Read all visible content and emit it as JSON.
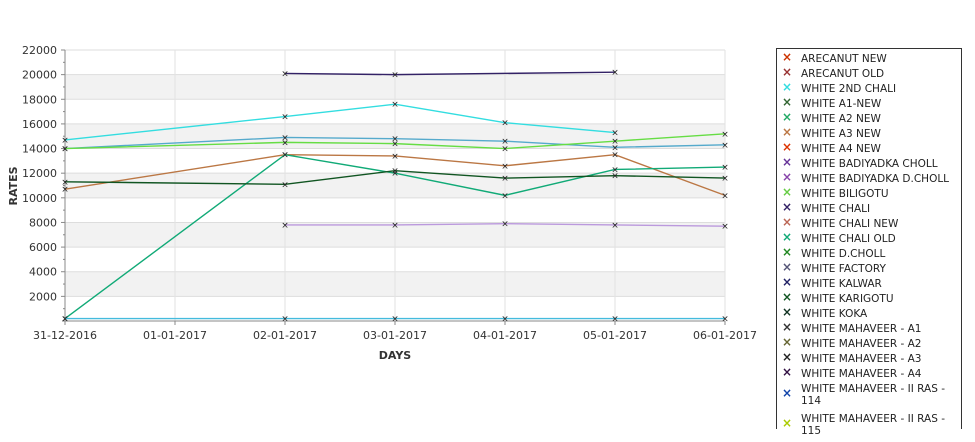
{
  "chart_data": {
    "type": "line",
    "title": "",
    "xlabel": "DAYS",
    "ylabel": "RATES",
    "categories": [
      "31-12-2016",
      "01-01-2017",
      "02-01-2017",
      "03-01-2017",
      "04-01-2017",
      "05-01-2017",
      "06-01-2017"
    ],
    "yticks": [
      2000,
      4000,
      6000,
      8000,
      10000,
      12000,
      14000,
      16000,
      18000,
      20000,
      22000
    ],
    "ylim": [
      0,
      22000
    ],
    "grid": true,
    "legend_position": "right",
    "series": [
      {
        "name": "ARECANUT NEW",
        "color": "#cc3300",
        "values": [
          null,
          null,
          null,
          null,
          null,
          null,
          null
        ]
      },
      {
        "name": "ARECANUT OLD",
        "color": "#993333",
        "values": [
          null,
          null,
          null,
          null,
          null,
          null,
          null
        ]
      },
      {
        "name": "WHITE 2ND CHALI",
        "color": "#33dde0",
        "values": [
          14700,
          null,
          16600,
          17600,
          16100,
          15300,
          null
        ]
      },
      {
        "name": "WHITE A1-NEW",
        "color": "#336633",
        "values": [
          null,
          null,
          null,
          null,
          null,
          null,
          null
        ]
      },
      {
        "name": "WHITE A2 NEW",
        "color": "#22aa66",
        "values": [
          null,
          null,
          null,
          null,
          null,
          null,
          null
        ]
      },
      {
        "name": "WHITE A3 NEW",
        "color": "#bb7744",
        "values": [
          10700,
          null,
          13500,
          13400,
          12600,
          13500,
          10200
        ]
      },
      {
        "name": "WHITE A4 NEW",
        "color": "#dd3300",
        "values": [
          null,
          null,
          null,
          null,
          null,
          null,
          null
        ]
      },
      {
        "name": "WHITE BADIYADKA CHOLL",
        "color": "#663399",
        "values": [
          null,
          null,
          null,
          null,
          null,
          null,
          null
        ]
      },
      {
        "name": "WHITE BADIYADKA D.CHOLL",
        "color": "#8844aa",
        "values": [
          null,
          null,
          null,
          null,
          null,
          null,
          null
        ]
      },
      {
        "name": "WHITE BILIGOTU",
        "color": "#66cc44",
        "values": [
          null,
          null,
          null,
          null,
          null,
          null,
          null
        ]
      },
      {
        "name": "WHITE CHALI",
        "color": "#332266",
        "values": [
          null,
          null,
          20100,
          20000,
          null,
          20200,
          null
        ]
      },
      {
        "name": "WHITE CHALI NEW",
        "color": "#bb6655",
        "values": [
          null,
          null,
          null,
          null,
          null,
          null,
          null
        ]
      },
      {
        "name": "WHITE CHALI OLD",
        "color": "#11aa77",
        "values": [
          200,
          null,
          13500,
          12000,
          10200,
          12300,
          12500
        ]
      },
      {
        "name": "WHITE D.CHOLL",
        "color": "#228822",
        "values": [
          null,
          null,
          null,
          null,
          null,
          null,
          null
        ]
      },
      {
        "name": "WHITE FACTORY",
        "color": "#555577",
        "values": [
          null,
          null,
          null,
          null,
          null,
          null,
          null
        ]
      },
      {
        "name": "WHITE KALWAR",
        "color": "#222266",
        "values": [
          null,
          null,
          null,
          null,
          null,
          null,
          null
        ]
      },
      {
        "name": "WHITE KARIGOTU",
        "color": "#115522",
        "values": [
          11300,
          null,
          11100,
          12200,
          11600,
          11800,
          11600
        ]
      },
      {
        "name": "WHITE KOKA",
        "color": "#113322",
        "values": [
          null,
          null,
          null,
          null,
          null,
          null,
          null
        ]
      },
      {
        "name": "WHITE MAHAVEER - A1",
        "color": "#333333",
        "values": [
          null,
          null,
          null,
          null,
          null,
          null,
          null
        ]
      },
      {
        "name": "WHITE MAHAVEER - A2",
        "color": "#666633",
        "values": [
          null,
          null,
          null,
          null,
          null,
          null,
          null
        ]
      },
      {
        "name": "WHITE MAHAVEER - A3",
        "color": "#222222",
        "values": [
          null,
          null,
          null,
          null,
          null,
          null,
          null
        ]
      },
      {
        "name": "WHITE MAHAVEER - A4",
        "color": "#331144",
        "values": [
          null,
          null,
          null,
          null,
          null,
          null,
          null
        ]
      },
      {
        "name": "WHITE MAHAVEER - II RAS - 114",
        "color": "#1144aa",
        "values": [
          null,
          null,
          null,
          null,
          null,
          null,
          null
        ]
      },
      {
        "name": "WHITE MAHAVEER - II RAS - 115",
        "color": "#aacc00",
        "values": [
          null,
          null,
          null,
          null,
          null,
          null,
          null
        ]
      },
      {
        "name": "",
        "color": "#55aacc",
        "values": [
          14000,
          null,
          14900,
          14800,
          14600,
          14100,
          14300
        ]
      },
      {
        "name": "",
        "color": "#66dd44",
        "values": [
          14000,
          null,
          14500,
          14400,
          14000,
          14600,
          15200
        ]
      },
      {
        "name": "",
        "color": "#bb99dd",
        "values": [
          null,
          null,
          7800,
          7800,
          7900,
          7800,
          7700
        ]
      },
      {
        "name": "",
        "color": "#44bbdd",
        "values": [
          200,
          null,
          200,
          200,
          200,
          200,
          200
        ]
      }
    ]
  }
}
